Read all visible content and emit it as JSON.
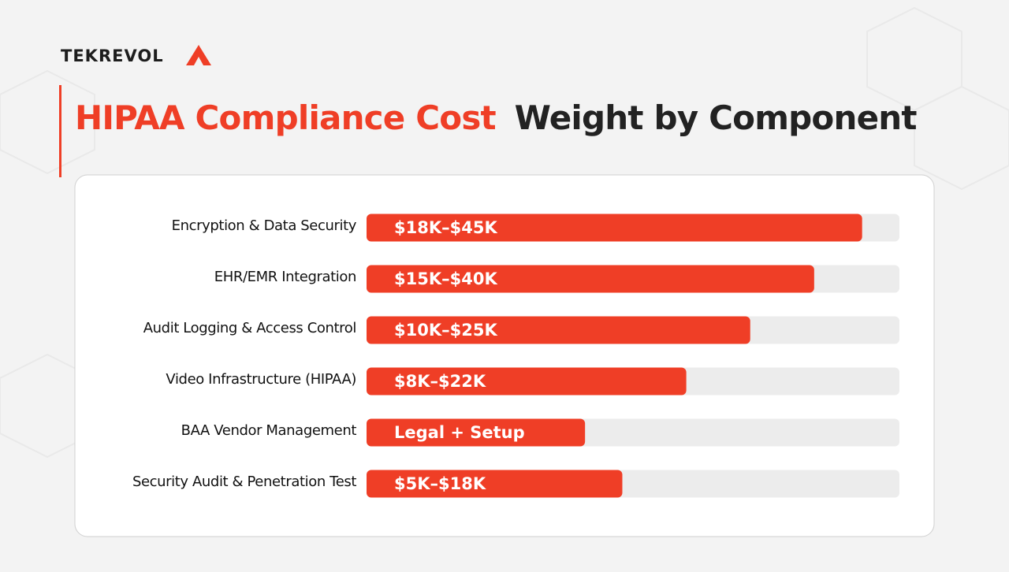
{
  "brand": "TEKREVOL",
  "chart_data": {
    "type": "hbar",
    "title_highlight": "HIPAA Compliance Cost",
    "title": "Weight by Component",
    "categories": [
      "Encryption & Data Security",
      "EHR/EMR Integration",
      "Audit Logging & Access Control",
      "Video Infrastructure (HIPAA)",
      "BAA Vendor Management",
      "Security Audit & Penetration Test"
    ],
    "values": [
      93,
      84,
      72,
      60,
      41,
      48
    ],
    "cost_ranges": [
      "$18K–$45K",
      "$15K–$40K",
      "$10K–$25K",
      "$8K–$22K",
      "Legal + Setup",
      "$5K–$18K"
    ],
    "xlim": [
      0,
      100
    ],
    "color": "#ef3e26",
    "track_color": "#ececec"
  }
}
